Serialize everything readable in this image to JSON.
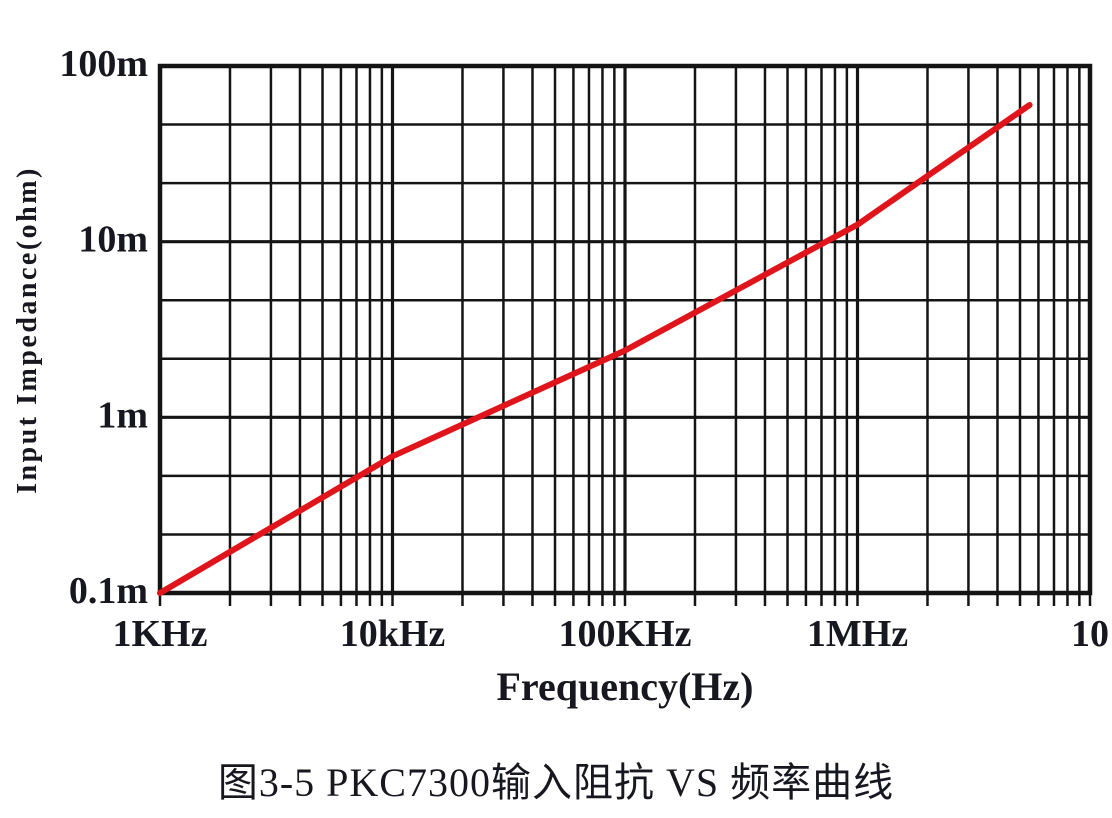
{
  "figure": {
    "caption": "图3-5 PKC7300输入阻抗 VS 频率曲线"
  },
  "chart_data": {
    "type": "line",
    "title": "图3-5 PKC7300输入阻抗 VS 频率曲线",
    "xlabel": "Frequency(Hz)",
    "ylabel": "Input Impedance(ohm)",
    "x_scale": "log",
    "y_scale": "log",
    "x_range_khz": [
      1,
      10000
    ],
    "y_range_milliohm": [
      0.1,
      100
    ],
    "x_ticks": [
      {
        "freq_khz": 1,
        "label": "1KHz"
      },
      {
        "freq_khz": 10,
        "label": "10kHz"
      },
      {
        "freq_khz": 100,
        "label": "100KHz"
      },
      {
        "freq_khz": 1000,
        "label": "1MHz"
      },
      {
        "freq_khz": 10000,
        "label": "10"
      }
    ],
    "y_ticks": [
      {
        "milliohm": 100,
        "label": "100m"
      },
      {
        "milliohm": 10,
        "label": "10m"
      },
      {
        "milliohm": 1,
        "label": "1m"
      },
      {
        "milliohm": 0.1,
        "label": "0.1m"
      }
    ],
    "grid": {
      "v_minor": "log-spaced 2-9 per decade",
      "h_minor": "2 evenly spaced minor lines per decade",
      "grid_color": "#141414"
    },
    "series": [
      {
        "name": "PKC7300 input impedance",
        "color": "#e0151c",
        "points_khz_milliohm": [
          [
            1,
            0.1
          ],
          [
            10,
            0.6
          ],
          [
            100,
            2.4
          ],
          [
            1000,
            12.5
          ],
          [
            5500,
            60
          ]
        ]
      }
    ]
  },
  "colors": {
    "background": "#ffffff",
    "grid": "#141414",
    "text": "#17171f",
    "curve": "#e0151c"
  }
}
